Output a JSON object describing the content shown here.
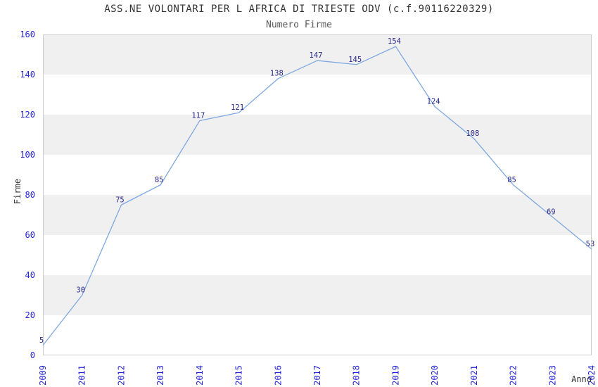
{
  "chart_data": {
    "type": "line",
    "title": "ASS.NE VOLONTARI PER L AFRICA DI TRIESTE ODV (c.f.90116220329)",
    "subtitle": "Numero Firme",
    "xlabel": "Anno",
    "ylabel": "Firme",
    "categories": [
      "2009",
      "2011",
      "2012",
      "2013",
      "2014",
      "2015",
      "2016",
      "2017",
      "2018",
      "2019",
      "2020",
      "2021",
      "2022",
      "2023",
      "2024"
    ],
    "values": [
      5,
      30,
      75,
      85,
      117,
      121,
      138,
      147,
      145,
      154,
      124,
      108,
      85,
      69,
      53
    ],
    "ylim": [
      0,
      160
    ],
    "ytick_step": 20,
    "yticks": [
      0,
      20,
      40,
      60,
      80,
      100,
      120,
      140,
      160
    ],
    "grid": "alternating-horizontal-bands",
    "legend": "none",
    "point_markers": false,
    "data_labels_shown": true,
    "colors": {
      "line": "#7fa8e0",
      "data_label": "#28288c",
      "tick_label": "#2323d7",
      "band": "#f0f0f0",
      "plot_border": "#cccccc",
      "title": "#333333",
      "subtitle": "#595959",
      "axis_title": "#333333",
      "background": "#ffffff"
    }
  }
}
